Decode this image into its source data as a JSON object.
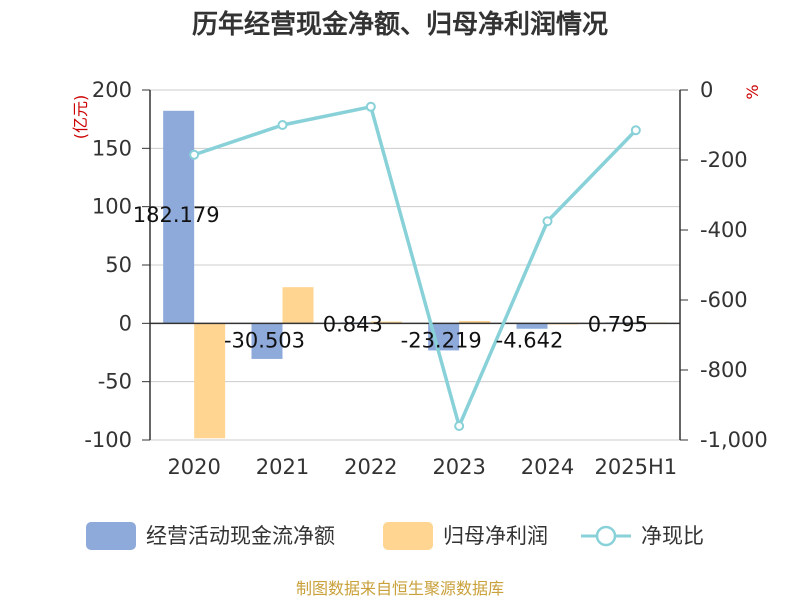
{
  "chart_data": {
    "type": "bar",
    "title": "历年经营现金净额、归母净利润情况",
    "categories": [
      "2020",
      "2021",
      "2022",
      "2023",
      "2024",
      "2025H1"
    ],
    "left_axis": {
      "unit": "(亿元)",
      "ylim": [
        -100,
        200
      ],
      "ticks": [
        "200",
        "150",
        "100",
        "50",
        "0",
        "-50",
        "-100"
      ],
      "tick_values": [
        200,
        150,
        100,
        50,
        0,
        -50,
        -100
      ]
    },
    "right_axis": {
      "unit": "%",
      "ylim": [
        -1000,
        0
      ],
      "ticks": [
        "0",
        "-200",
        "-400",
        "-600",
        "-800",
        "-1,000"
      ],
      "tick_values": [
        0,
        -200,
        -400,
        -600,
        -800,
        -1000
      ]
    },
    "series": [
      {
        "name": "经营活动现金流净额",
        "type": "bar",
        "axis": "left",
        "color": "#8eaadb",
        "values": [
          182.179,
          -30.503,
          0.843,
          -23.219,
          -4.642,
          0.795
        ],
        "labels": [
          "182.179",
          "-30.503",
          "0.843",
          "-23.219",
          "-4.642",
          "0.795"
        ]
      },
      {
        "name": "归母净利润",
        "type": "bar",
        "axis": "left",
        "color": "#ffd591",
        "values": [
          -98.5,
          31.0,
          1.5,
          2.0,
          -1.0,
          0.8
        ]
      },
      {
        "name": "净现比",
        "type": "line",
        "axis": "right",
        "color": "#88d1d8",
        "values": [
          -185,
          -100,
          -48,
          -960,
          -375,
          -115
        ]
      }
    ],
    "grid": true,
    "legend_position": "bottom"
  },
  "source": "制图数据来自恒生聚源数据库"
}
